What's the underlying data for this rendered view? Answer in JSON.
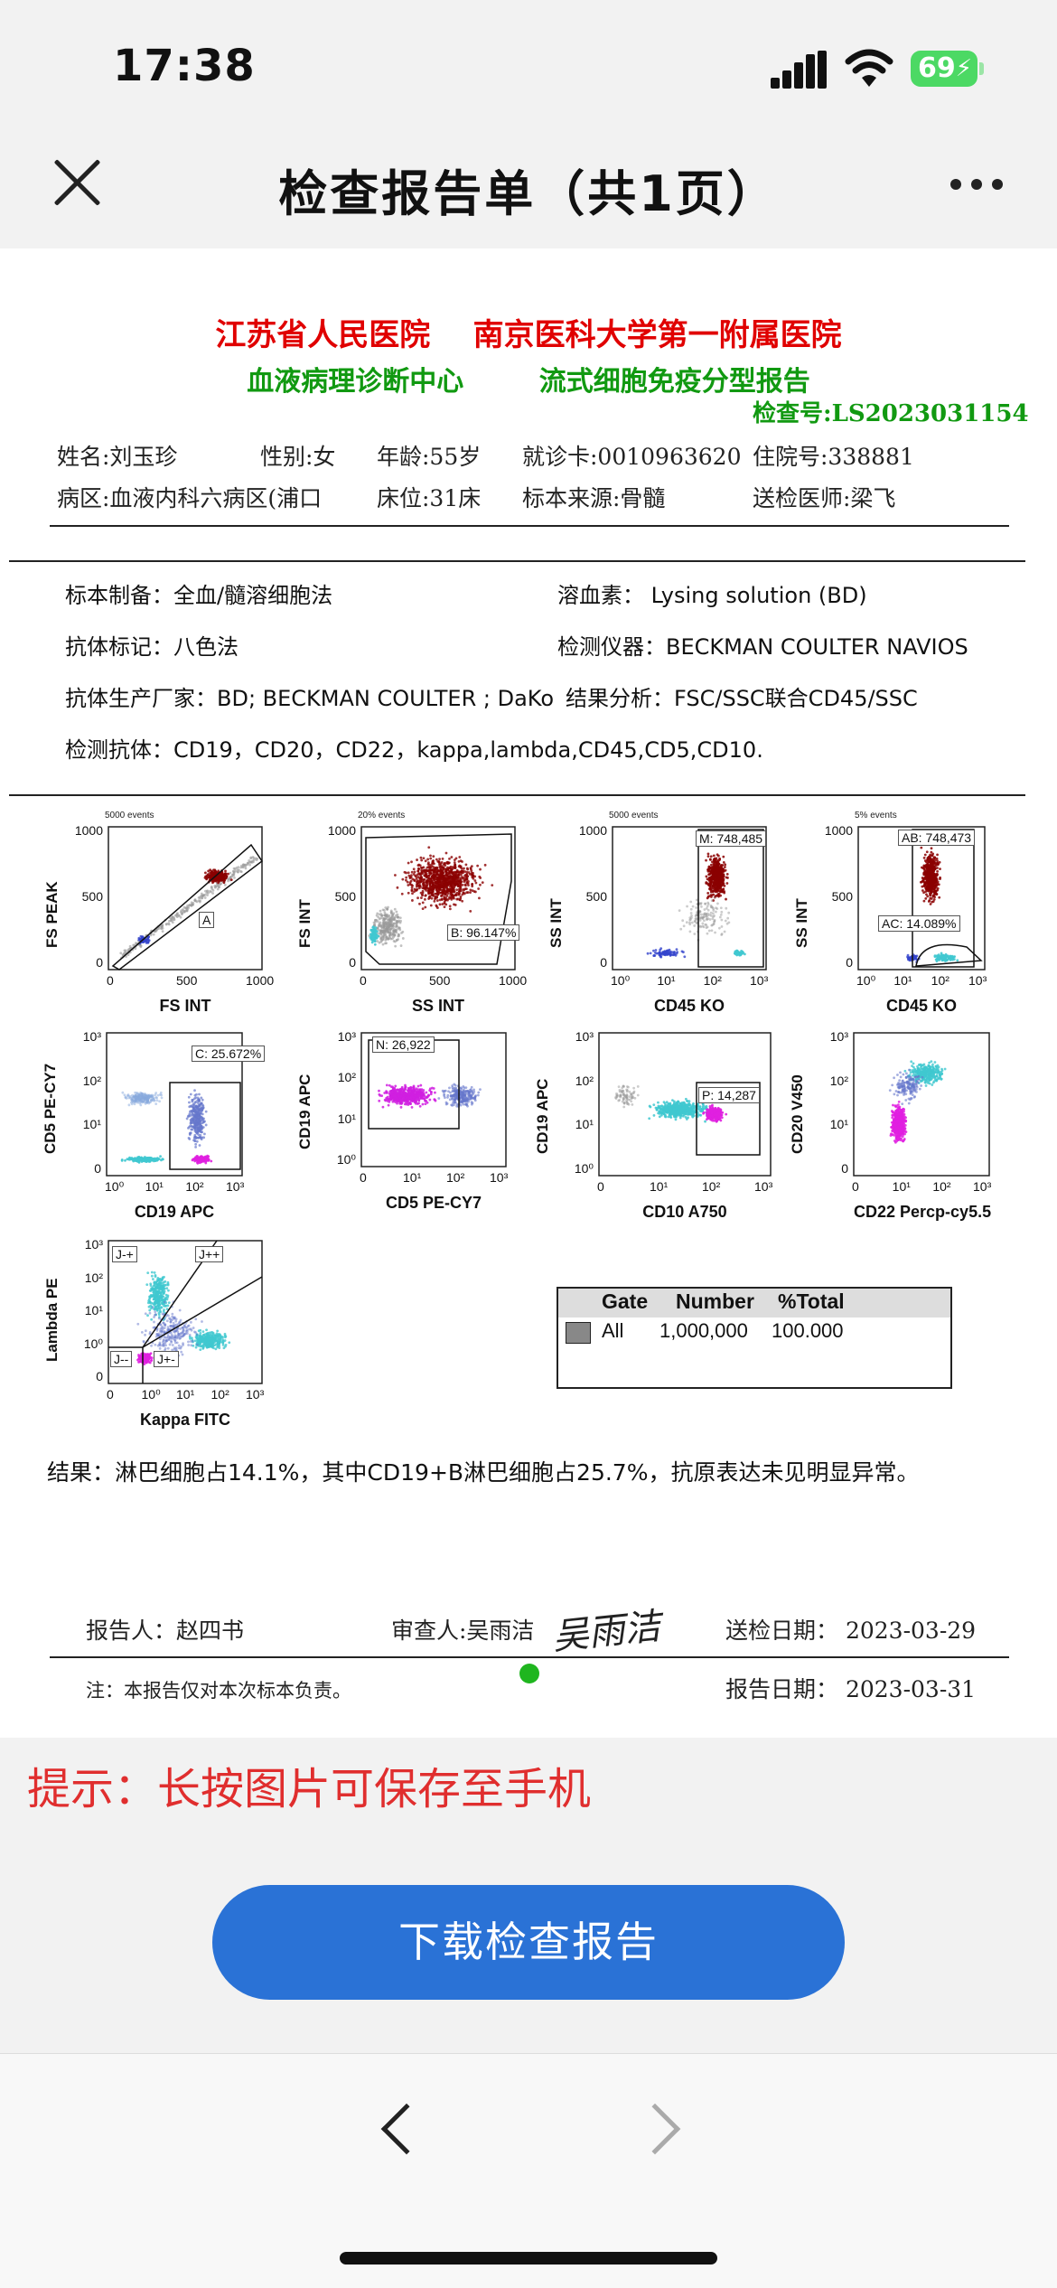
{
  "status": {
    "time": "17:38",
    "battery": "69"
  },
  "nav": {
    "title": "检查报告单（共1页）"
  },
  "report": {
    "hospital": "江苏省人民医院    南京医科大学第一附属医院",
    "department": "血液病理诊断中心        流式细胞免疫分型报告",
    "report_no": "检查号:LS2023031154",
    "patient": {
      "name": "姓名:刘玉珍",
      "sex": "性别:女",
      "age": "年龄:55岁",
      "clinic_card": "就诊卡:0010963620",
      "inpatient_no": "住院号:338881",
      "ward": "病区:血液内科六病区(浦口",
      "bed": "床位:31床",
      "specimen": "标本来源:骨髓",
      "doctor": "送检医师:梁飞"
    },
    "method": {
      "prep": "标本制备：全血/髓溶细胞法",
      "lysis": "溶血素： Lysing solution (BD)",
      "marker": "抗体标记：八色法",
      "instrument": "检测仪器：BECKMAN COULTER NAVIOS",
      "vendor": "抗体生产厂家：BD; BECKMAN COULTER ; DaKo",
      "analysis": "结果分析：FSC/SSC联合CD45/SSC",
      "antibodies": "检测抗体：CD19，CD20，CD22，kappa,lambda,CD45,CD5,CD10."
    },
    "plots": [
      {
        "events": "5000 events",
        "ylabel": "FS PEAK",
        "xlabel": "FS INT",
        "gate": "A",
        "yt": [
          "1000",
          "500",
          "0"
        ],
        "xt": [
          "0",
          "500",
          "1000"
        ]
      },
      {
        "events": "20% events",
        "ylabel": "FS INT",
        "xlabel": "SS INT",
        "gate": "B: 96.147%",
        "yt": [
          "1000",
          "500",
          "0"
        ],
        "xt": [
          "0",
          "500",
          "1000"
        ]
      },
      {
        "events": "5000 events",
        "ylabel": "SS INT",
        "xlabel": "CD45 KO",
        "gate": "M: 748,485",
        "yt": [
          "1000",
          "500",
          "0"
        ],
        "xt": [
          "10⁰",
          "10¹",
          "10²",
          "10³"
        ]
      },
      {
        "events": "5% events",
        "ylabel": "SS INT",
        "xlabel": "CD45 KO",
        "gate": "AB: 748,473",
        "gate2": "AC: 14.089%",
        "yt": [
          "1000",
          "500",
          "0"
        ],
        "xt": [
          "10⁰",
          "10¹",
          "10²",
          "10³"
        ]
      },
      {
        "ylabel": "CD5 PE-CY7",
        "xlabel": "CD19 APC",
        "gate": "C: 25.672%",
        "yt": [
          "10³",
          "10²",
          "10¹",
          "0"
        ],
        "xt": [
          "10⁰",
          "10¹",
          "10²",
          "10³"
        ]
      },
      {
        "ylabel": "CD19 APC",
        "xlabel": "CD5 PE-CY7",
        "gate": "N: 26,922",
        "yt": [
          "10³",
          "10²",
          "10¹",
          "10⁰"
        ],
        "xt": [
          "0",
          "10¹",
          "10²",
          "10³"
        ]
      },
      {
        "ylabel": "CD19 APC",
        "xlabel": "CD10 A750",
        "gate": "P: 14,287",
        "yt": [
          "10³",
          "10²",
          "10¹",
          "10⁰"
        ],
        "xt": [
          "0",
          "10¹",
          "10²",
          "10³"
        ]
      },
      {
        "ylabel": "CD20 V450",
        "xlabel": "CD22 Percp-cy5.5",
        "yt": [
          "10³",
          "10²",
          "10¹",
          "0"
        ],
        "xt": [
          "0",
          "10¹",
          "10²",
          "10³"
        ]
      },
      {
        "ylabel": "Lambda PE",
        "xlabel": "Kappa FITC",
        "gate": "J-+",
        "gate2": "J++",
        "gate3": "J--",
        "gate4": "J+-",
        "yt": [
          "10³",
          "10²",
          "10¹",
          "10⁰",
          "0"
        ],
        "xt": [
          "0",
          "10⁰",
          "10¹",
          "10²",
          "10³"
        ]
      }
    ],
    "gate_table": {
      "h_gate": "Gate",
      "h_number": "Number",
      "h_total": "%Total",
      "gate": "All",
      "number": "1,000,000",
      "total": "100.000"
    },
    "result": "结果：淋巴细胞占14.1%，其中CD19+B淋巴细胞占25.7%，抗原表达未见明显异常。",
    "reporter": "报告人：赵四书",
    "reviewer": "审查人:吴雨洁",
    "signature": "吴雨洁",
    "send_date": "送检日期： 2023-03-29",
    "note": "注：本报告仅对本次标本负责。",
    "report_date": "报告日期： 2023-03-31"
  },
  "tip": "提示：长按图片可保存至手机",
  "download": "下载检查报告",
  "colors": {
    "accent": "#2a72d6",
    "title_red": "#e00000",
    "title_green": "#119911",
    "tip": "#e02e2e"
  }
}
